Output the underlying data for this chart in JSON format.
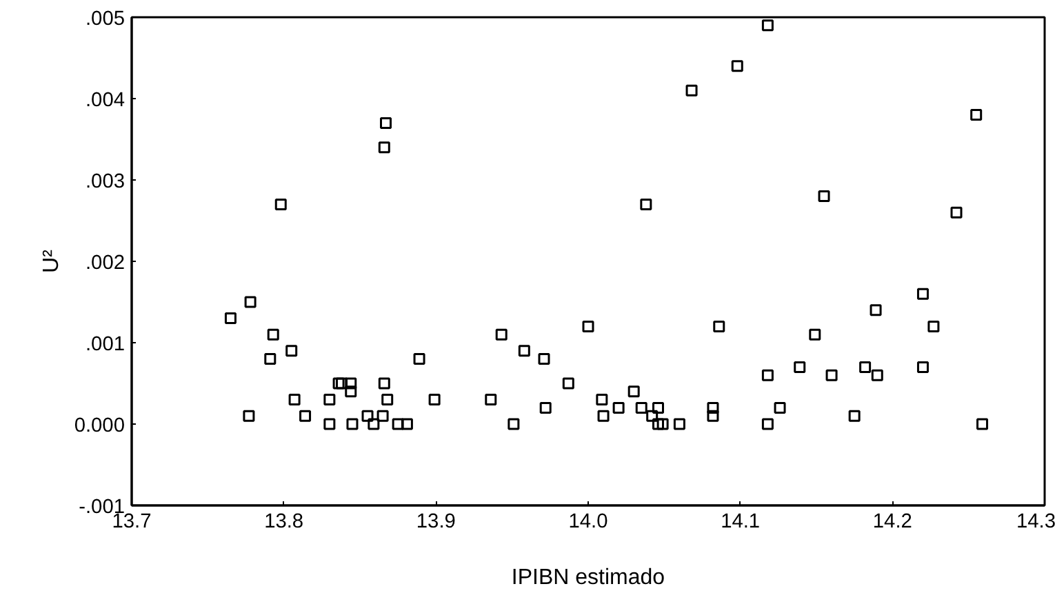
{
  "chart_data": {
    "type": "scatter",
    "xlabel": "IPIBN estimado",
    "ylabel": "U²",
    "marker": "square",
    "grid": false,
    "xlim": [
      13.7,
      14.3
    ],
    "ylim": [
      -0.001,
      0.005
    ],
    "xticks": [
      13.7,
      13.8,
      13.9,
      {
        "value": 14.0,
        "label": "14.0"
      },
      14.1,
      14.2,
      14.3
    ],
    "yticks": [
      {
        "value": -0.001,
        "label": "-.001"
      },
      {
        "value": 0,
        "label": "0.000"
      },
      {
        "value": 0.001,
        "label": ".001"
      },
      {
        "value": 0.002,
        "label": ".002"
      },
      {
        "value": 0.003,
        "label": ".003"
      },
      {
        "value": 0.004,
        "label": ".004"
      },
      {
        "value": 0.005,
        "label": ".005"
      }
    ],
    "series": [
      {
        "color": "#000000",
        "x": [
          13.798,
          13.867,
          13.866,
          14.038,
          14.068,
          14.098,
          14.118,
          14.155,
          14.242,
          14.255,
          13.778,
          13.765,
          13.793,
          13.805,
          13.791,
          13.889,
          13.866,
          13.844,
          13.838,
          13.836,
          13.844,
          13.868,
          13.83,
          13.807,
          13.899,
          13.777,
          13.814,
          13.83,
          13.845,
          13.855,
          13.865,
          13.859,
          13.875,
          13.881,
          13.943,
          14.0,
          14.086,
          13.958,
          13.971,
          13.987,
          13.936,
          13.972,
          13.951,
          14.009,
          14.01,
          14.02,
          14.03,
          14.035,
          14.046,
          14.042,
          14.046,
          14.049,
          14.06,
          14.082,
          14.082,
          14.189,
          14.22,
          14.227,
          14.149,
          14.118,
          14.139,
          14.16,
          14.182,
          14.19,
          14.22,
          14.126,
          14.118,
          14.175,
          14.259
        ],
        "values": [
          0.0027,
          0.0037,
          0.0034,
          0.0027,
          0.0041,
          0.0044,
          0.0049,
          0.0028,
          0.0026,
          0.0038,
          0.0015,
          0.0013,
          0.0011,
          0.0009,
          0.0008,
          0.0008,
          0.0005,
          0.0005,
          0.0005,
          0.0005,
          0.0004,
          0.0003,
          0.0003,
          0.0003,
          0.0003,
          0.0001,
          0.0001,
          0.0,
          0.0,
          0.0001,
          0.0001,
          0.0,
          0.0,
          0.0,
          0.0011,
          0.0012,
          0.0012,
          0.0009,
          0.0008,
          0.0005,
          0.0003,
          0.0002,
          0.0,
          0.0003,
          0.0001,
          0.0002,
          0.0004,
          0.0002,
          0.0002,
          0.0001,
          0.0,
          0.0,
          0.0,
          0.0002,
          0.0001,
          0.0014,
          0.0016,
          0.0012,
          0.0011,
          0.0006,
          0.0007,
          0.0006,
          0.0007,
          0.0006,
          0.0007,
          0.0002,
          0.0,
          0.0001,
          0.0
        ]
      }
    ]
  }
}
